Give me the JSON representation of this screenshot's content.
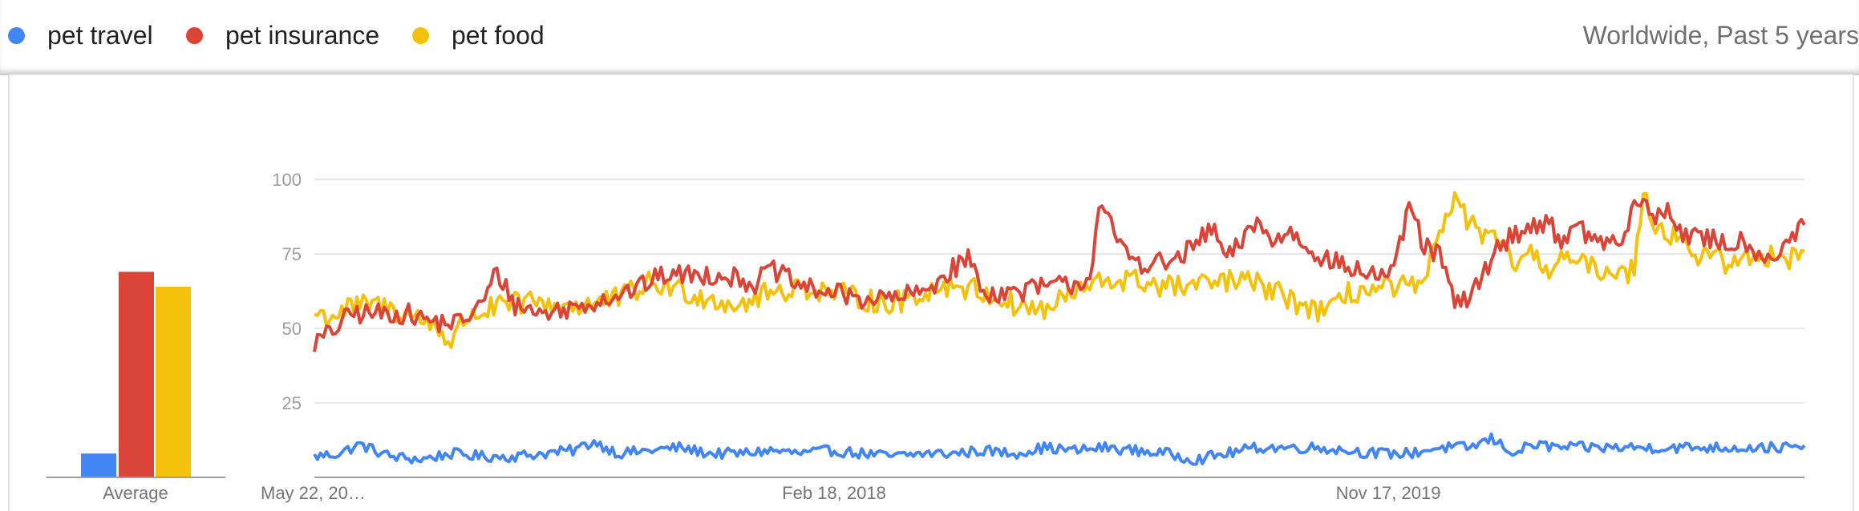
{
  "legend": [
    {
      "name": "pet travel",
      "color": "#4285f4"
    },
    {
      "name": "pet insurance",
      "color": "#db4437"
    },
    {
      "name": "pet food",
      "color": "#f4c20d"
    }
  ],
  "scope_label": "Worldwide, Past 5 years",
  "average_label": "Average",
  "chart_data": {
    "type": "line",
    "yticks": [
      25,
      50,
      75,
      100
    ],
    "ylim": [
      0,
      100
    ],
    "xticks": [
      "May 22, 20…",
      "Feb 18, 2018",
      "Nov 17, 2019"
    ],
    "grid": true,
    "legend_position": "top-left",
    "averages": [
      {
        "name": "pet travel",
        "value": 8
      },
      {
        "name": "pet insurance",
        "value": 69
      },
      {
        "name": "pet food",
        "value": 64
      }
    ],
    "series": [
      {
        "name": "pet travel",
        "color": "#4285f4",
        "anchors": [
          [
            0,
            7
          ],
          [
            8,
            8
          ],
          [
            15,
            11
          ],
          [
            25,
            7
          ],
          [
            35,
            6
          ],
          [
            45,
            8
          ],
          [
            55,
            7
          ],
          [
            65,
            7
          ],
          [
            75,
            8
          ],
          [
            85,
            9
          ],
          [
            92,
            12
          ],
          [
            100,
            8
          ],
          [
            110,
            9
          ],
          [
            120,
            10
          ],
          [
            130,
            8
          ],
          [
            140,
            8
          ],
          [
            150,
            9
          ],
          [
            160,
            8
          ],
          [
            170,
            9
          ],
          [
            180,
            8
          ],
          [
            190,
            7
          ],
          [
            200,
            8
          ],
          [
            210,
            8
          ],
          [
            220,
            9
          ],
          [
            230,
            8
          ],
          [
            240,
            10
          ],
          [
            250,
            9
          ],
          [
            260,
            10
          ],
          [
            270,
            9
          ],
          [
            280,
            8
          ],
          [
            290,
            6
          ],
          [
            300,
            8
          ],
          [
            310,
            10
          ],
          [
            320,
            10
          ],
          [
            330,
            10
          ],
          [
            340,
            9
          ],
          [
            350,
            8
          ],
          [
            360,
            8
          ],
          [
            370,
            10
          ],
          [
            380,
            10
          ],
          [
            387,
            13
          ],
          [
            395,
            8
          ],
          [
            400,
            11
          ],
          [
            410,
            10
          ]
        ]
      },
      {
        "name": "pet insurance",
        "color": "#db4437",
        "anchors": [
          [
            0,
            45
          ],
          [
            6,
            49
          ],
          [
            12,
            55
          ],
          [
            20,
            55
          ],
          [
            30,
            55
          ],
          [
            40,
            52
          ],
          [
            48,
            52
          ],
          [
            55,
            58
          ],
          [
            60,
            69
          ],
          [
            66,
            58
          ],
          [
            75,
            55
          ],
          [
            85,
            57
          ],
          [
            95,
            60
          ],
          [
            105,
            63
          ],
          [
            115,
            68
          ],
          [
            125,
            68
          ],
          [
            135,
            68
          ],
          [
            145,
            65
          ],
          [
            150,
            70
          ],
          [
            160,
            64
          ],
          [
            170,
            62
          ],
          [
            180,
            60
          ],
          [
            190,
            60
          ],
          [
            200,
            62
          ],
          [
            210,
            70
          ],
          [
            215,
            74
          ],
          [
            220,
            62
          ],
          [
            230,
            62
          ],
          [
            240,
            64
          ],
          [
            250,
            65
          ],
          [
            255,
            67
          ],
          [
            258,
            91
          ],
          [
            262,
            84
          ],
          [
            266,
            76
          ],
          [
            272,
            72
          ],
          [
            282,
            72
          ],
          [
            290,
            78
          ],
          [
            295,
            84
          ],
          [
            300,
            73
          ],
          [
            305,
            79
          ],
          [
            310,
            87
          ],
          [
            315,
            78
          ],
          [
            320,
            83
          ],
          [
            330,
            75
          ],
          [
            340,
            70
          ],
          [
            350,
            68
          ],
          [
            355,
            68
          ],
          [
            360,
            92
          ],
          [
            365,
            77
          ],
          [
            370,
            75
          ],
          [
            375,
            58
          ],
          [
            380,
            60
          ],
          [
            385,
            70
          ],
          [
            390,
            78
          ],
          [
            395,
            82
          ],
          [
            400,
            84
          ],
          [
            405,
            86
          ],
          [
            410,
            80
          ],
          [
            415,
            84
          ],
          [
            420,
            80
          ],
          [
            425,
            79
          ],
          [
            430,
            78
          ],
          [
            435,
            94
          ],
          [
            440,
            87
          ],
          [
            445,
            90
          ],
          [
            450,
            82
          ],
          [
            455,
            80
          ],
          [
            460,
            80
          ],
          [
            465,
            78
          ],
          [
            470,
            80
          ],
          [
            475,
            75
          ],
          [
            480,
            74
          ],
          [
            485,
            80
          ],
          [
            490,
            84
          ]
        ]
      },
      {
        "name": "pet food",
        "color": "#f4c20d",
        "anchors": [
          [
            0,
            55
          ],
          [
            5,
            54
          ],
          [
            12,
            57
          ],
          [
            20,
            58
          ],
          [
            30,
            55
          ],
          [
            40,
            51
          ],
          [
            45,
            45
          ],
          [
            50,
            54
          ],
          [
            60,
            57
          ],
          [
            70,
            59
          ],
          [
            80,
            58
          ],
          [
            90,
            58
          ],
          [
            100,
            60
          ],
          [
            110,
            65
          ],
          [
            120,
            63
          ],
          [
            130,
            60
          ],
          [
            140,
            58
          ],
          [
            150,
            62
          ],
          [
            160,
            64
          ],
          [
            170,
            62
          ],
          [
            180,
            60
          ],
          [
            190,
            58
          ],
          [
            200,
            62
          ],
          [
            210,
            65
          ],
          [
            220,
            62
          ],
          [
            230,
            58
          ],
          [
            240,
            56
          ],
          [
            250,
            62
          ],
          [
            260,
            66
          ],
          [
            270,
            66
          ],
          [
            280,
            64
          ],
          [
            290,
            64
          ],
          [
            300,
            66
          ],
          [
            310,
            65
          ],
          [
            320,
            60
          ],
          [
            330,
            56
          ],
          [
            335,
            56
          ],
          [
            340,
            62
          ],
          [
            350,
            63
          ],
          [
            360,
            64
          ],
          [
            365,
            63
          ],
          [
            370,
            85
          ],
          [
            375,
            92
          ],
          [
            380,
            86
          ],
          [
            385,
            80
          ],
          [
            390,
            78
          ],
          [
            395,
            72
          ],
          [
            400,
            74
          ],
          [
            405,
            70
          ],
          [
            410,
            74
          ],
          [
            415,
            72
          ],
          [
            420,
            70
          ],
          [
            425,
            70
          ],
          [
            430,
            68
          ],
          [
            434,
            70
          ],
          [
            437,
            98
          ],
          [
            440,
            86
          ],
          [
            445,
            82
          ],
          [
            450,
            80
          ],
          [
            455,
            74
          ],
          [
            460,
            74
          ],
          [
            465,
            72
          ],
          [
            470,
            74
          ],
          [
            475,
            72
          ],
          [
            480,
            76
          ],
          [
            485,
            74
          ],
          [
            490,
            76
          ]
        ]
      }
    ]
  }
}
